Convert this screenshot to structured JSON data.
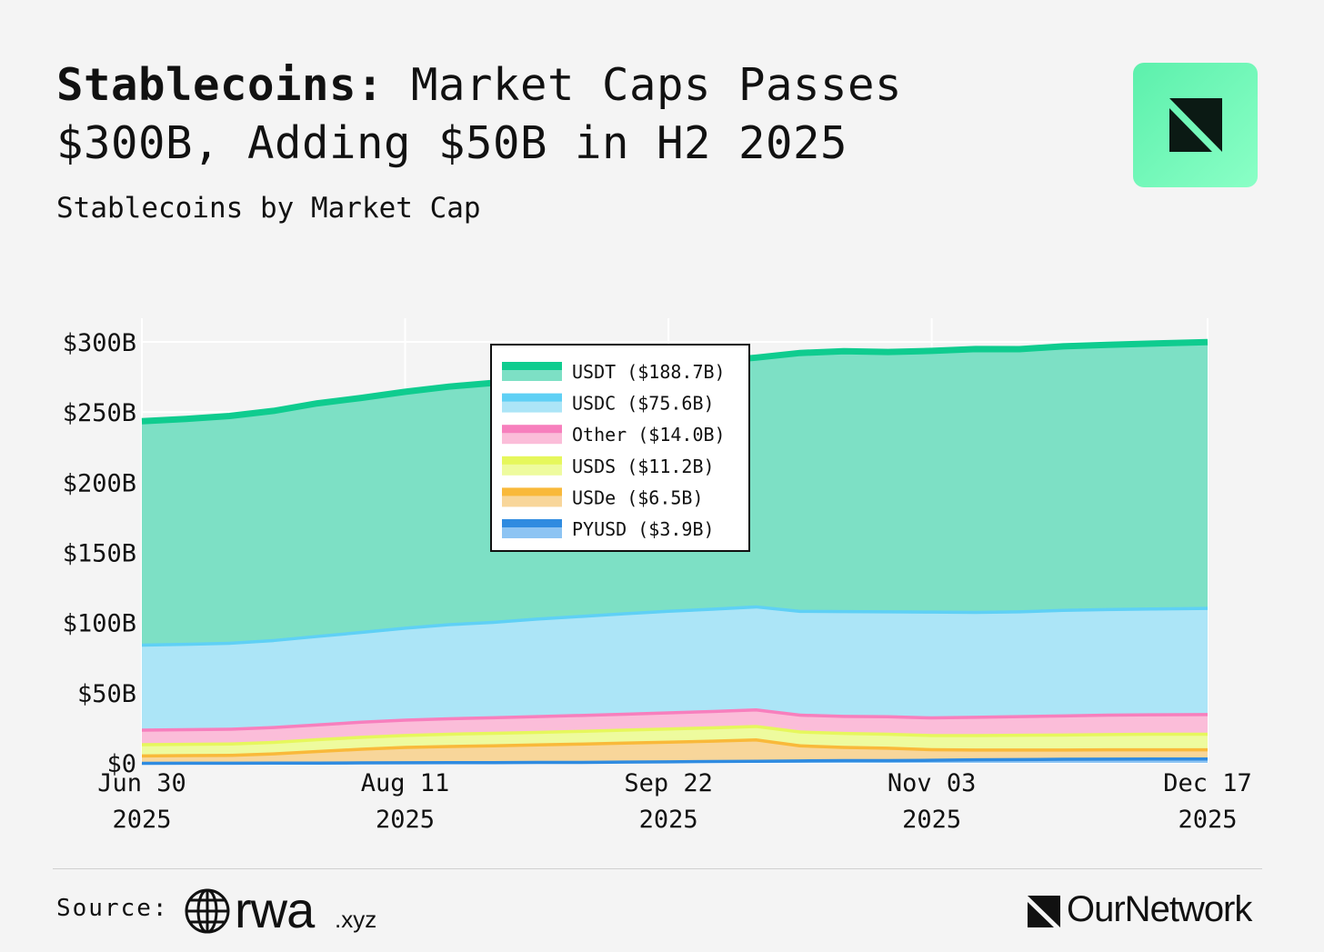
{
  "header": {
    "title_lead": "Stablecoins:",
    "title_rest": " Market Caps Passes $300B, Adding $50B in H2 2025",
    "subtitle": "Stablecoins by Market Cap"
  },
  "footer": {
    "source_label": "Source:",
    "source_name": "rwa",
    "source_ext": ".xyz",
    "brand": "OurNetwork"
  },
  "icons": {
    "brand_badge": "ournetwork-logo-icon",
    "source_logo": "globe-icon"
  },
  "colors": {
    "background": "#f4f4f4",
    "USDT": "#0fcc8f",
    "USDT_fill": "#7de0c5",
    "USDC": "#5fd0f5",
    "USDC_fill": "#ace5f7",
    "Other": "#f77fbd",
    "Other_fill": "#fbbdd9",
    "USDS": "#e6f75c",
    "USDS_fill": "#eefb9e",
    "USDe": "#f9b93a",
    "USDe_fill": "#f8d69a",
    "PYUSD": "#2f8be0",
    "PYUSD_fill": "#8dc4f3"
  },
  "chart_data": {
    "type": "area",
    "stacked": true,
    "title": "",
    "xlabel": "",
    "ylabel": "",
    "ylim": [
      0,
      300
    ],
    "y_unit": "B",
    "y_ticks": [
      0,
      50,
      100,
      150,
      200,
      250,
      300
    ],
    "y_tick_labels": [
      "$0",
      "$50B",
      "$100B",
      "$150B",
      "$200B",
      "$250B",
      "$300B"
    ],
    "x_ticks": [
      "2025-06-30",
      "2025-08-11",
      "2025-09-22",
      "2025-11-03",
      "2025-12-17"
    ],
    "x_tick_labels": [
      [
        "Jun 30",
        "2025"
      ],
      [
        "Aug 11",
        "2025"
      ],
      [
        "Sep 22",
        "2025"
      ],
      [
        "Nov 03",
        "2025"
      ],
      [
        "Dec 17",
        "2025"
      ]
    ],
    "grid": true,
    "legend_position": "top-center",
    "x": [
      "2025-06-30",
      "2025-07-07",
      "2025-07-14",
      "2025-07-21",
      "2025-07-28",
      "2025-08-04",
      "2025-08-11",
      "2025-08-18",
      "2025-08-25",
      "2025-09-01",
      "2025-09-08",
      "2025-09-15",
      "2025-09-22",
      "2025-09-29",
      "2025-10-06",
      "2025-10-13",
      "2025-10-20",
      "2025-10-27",
      "2025-11-03",
      "2025-11-10",
      "2025-11-17",
      "2025-11-24",
      "2025-12-01",
      "2025-12-08",
      "2025-12-17"
    ],
    "series": [
      {
        "name": "PYUSD",
        "legend": "PYUSD ($3.9B)",
        "values": [
          0.8,
          0.9,
          0.9,
          1.0,
          1.0,
          1.1,
          1.2,
          1.3,
          1.3,
          1.4,
          1.5,
          1.7,
          1.9,
          2.1,
          2.3,
          2.5,
          2.7,
          2.8,
          3.0,
          3.3,
          3.5,
          3.7,
          3.8,
          3.9,
          3.9
        ]
      },
      {
        "name": "USDe",
        "legend": "USDe ($6.5B)",
        "values": [
          5.3,
          5.4,
          5.6,
          6.5,
          8.2,
          9.8,
          10.9,
          11.5,
          12.0,
          12.5,
          13.0,
          13.5,
          14.0,
          14.5,
          15.2,
          10.8,
          9.5,
          8.8,
          7.5,
          7.0,
          6.8,
          6.6,
          6.6,
          6.5,
          6.5
        ]
      },
      {
        "name": "USDS",
        "legend": "USDS ($11.2B)",
        "values": [
          8.0,
          8.0,
          8.1,
          8.2,
          8.4,
          8.5,
          8.6,
          8.8,
          8.9,
          9.0,
          9.1,
          9.2,
          9.4,
          9.5,
          9.6,
          9.8,
          9.9,
          10.0,
          10.1,
          10.3,
          10.5,
          10.7,
          10.9,
          11.1,
          11.2
        ]
      },
      {
        "name": "Other",
        "legend": "Other ($14.0B)",
        "values": [
          10.4,
          10.5,
          10.5,
          10.6,
          10.6,
          10.7,
          10.9,
          11.0,
          11.1,
          11.2,
          11.3,
          11.4,
          11.5,
          11.6,
          11.8,
          12.0,
          12.2,
          12.4,
          12.6,
          13.0,
          13.3,
          13.6,
          13.8,
          13.9,
          14.0
        ]
      },
      {
        "name": "USDC",
        "legend": "USDC ($75.6B)",
        "values": [
          60.5,
          60.8,
          61.3,
          62.0,
          63.0,
          64.0,
          65.5,
          67.0,
          68.0,
          69.5,
          70.6,
          71.6,
          72.4,
          72.9,
          73.4,
          74.0,
          74.6,
          74.8,
          75.4,
          74.8,
          74.7,
          75.2,
          75.3,
          75.4,
          75.6
        ]
      },
      {
        "name": "USDT",
        "legend": "USDT ($188.7B)",
        "values": [
          158.5,
          159.5,
          160.8,
          162.5,
          165.0,
          166.0,
          167.3,
          168.5,
          169.5,
          170.5,
          172.0,
          173.5,
          174.8,
          175.5,
          176.5,
          183.0,
          184.5,
          184.0,
          185.0,
          186.5,
          186.0,
          187.0,
          187.5,
          188.0,
          188.7
        ]
      }
    ]
  }
}
